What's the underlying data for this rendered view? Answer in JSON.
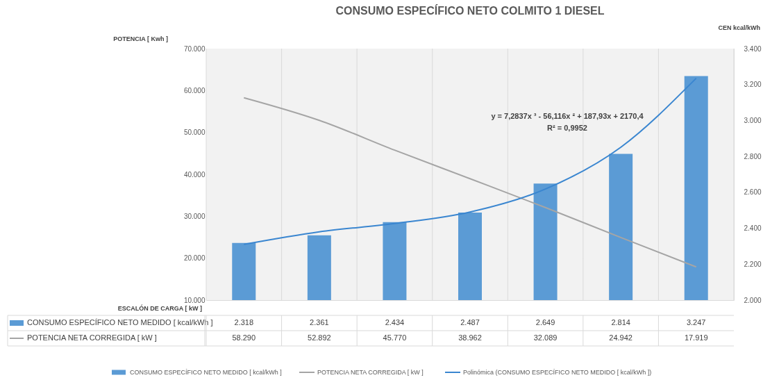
{
  "chart_data": {
    "type": "bar",
    "title": "CONSUMO ESPECÍFICO NETO COLMITO 1 DIESEL",
    "xlabel": "ESCALÓN DE CARGA [ kW ]",
    "ylabel": "POTENCIA [ Kwh ]",
    "y2label": "CEN kcal/kWh",
    "categories": [
      "58.290",
      "52.892",
      "45.770",
      "38.962",
      "32.089",
      "24.942",
      "17.919"
    ],
    "series": [
      {
        "name": "CONSUMO ESPECÍFICO NETO MEDIDO [ kcal/kWh ]",
        "axis": "y2",
        "color": "#5b9bd5",
        "values": [
          2318,
          2361,
          2434,
          2487,
          2649,
          2814,
          3247
        ],
        "value_labels": [
          "2.318",
          "2.361",
          "2.434",
          "2.487",
          "2.649",
          "2.814",
          "3.247"
        ]
      },
      {
        "name": "POTENCIA NETA CORREGIDA [ kW ]",
        "type": "line",
        "color": "#a5a5a5",
        "values": [
          58290,
          52892,
          45770,
          38962,
          32089,
          24942,
          17919
        ],
        "value_labels": [
          "58.290",
          "52.892",
          "45.770",
          "38.962",
          "32.089",
          "24.942",
          "17.919"
        ]
      },
      {
        "name": "Polinómica (CONSUMO ESPECÍFICO NETO MEDIDO [ kcal/kWh ])",
        "type": "line",
        "axis": "y2",
        "color": "#3a86d0",
        "values": [
          2310,
          2380,
          2426,
          2490,
          2618,
          2851,
          3235
        ]
      }
    ],
    "ylim": [
      10000,
      70000
    ],
    "yticks": [
      {
        "value": 10000,
        "label": "10.000"
      },
      {
        "value": 20000,
        "label": "20.000"
      },
      {
        "value": 30000,
        "label": "30.000"
      },
      {
        "value": 40000,
        "label": "40.000"
      },
      {
        "value": 50000,
        "label": "50.000"
      },
      {
        "value": 60000,
        "label": "60.000"
      },
      {
        "value": 70000,
        "label": "70.000"
      }
    ],
    "y2lim": [
      2000,
      3400
    ],
    "y2ticks": [
      {
        "value": 2000,
        "label": "2.000"
      },
      {
        "value": 2200,
        "label": "2.200"
      },
      {
        "value": 2400,
        "label": "2.400"
      },
      {
        "value": 2600,
        "label": "2.600"
      },
      {
        "value": 2800,
        "label": "2.800"
      },
      {
        "value": 3000,
        "label": "3.000"
      },
      {
        "value": 3200,
        "label": "3.200"
      },
      {
        "value": 3400,
        "label": "3.400"
      }
    ],
    "annotations": [
      "y = 7,2837x ³ - 56,116x ² + 187,93x + 2170,4",
      "R² = 0,9952"
    ],
    "grid": true,
    "legend": "bottom",
    "marker": "none",
    "line_style": "solid"
  }
}
